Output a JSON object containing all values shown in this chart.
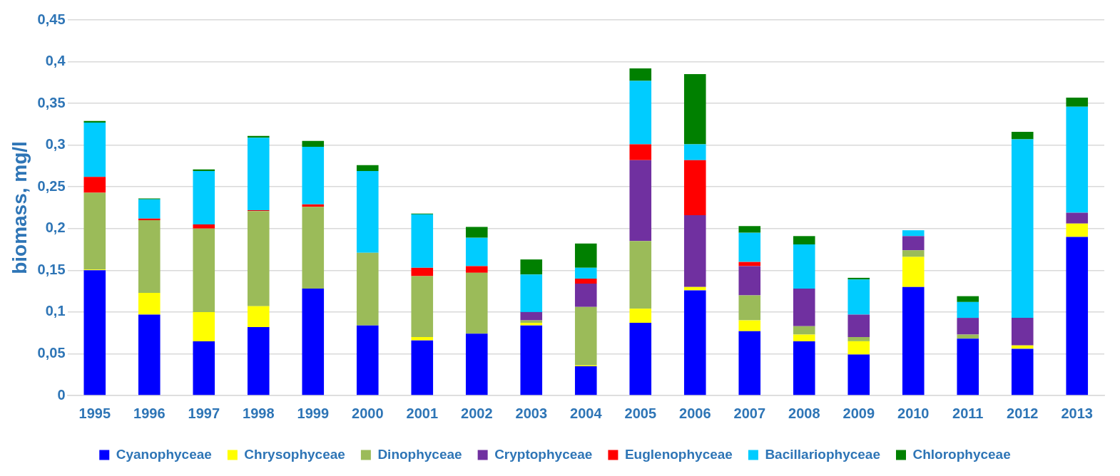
{
  "chart_data": {
    "type": "bar",
    "stacked": true,
    "ylabel": "biomass, mg/l",
    "categories": [
      "1995",
      "1996",
      "1997",
      "1998",
      "1999",
      "2000",
      "2001",
      "2002",
      "2003",
      "2004",
      "2005",
      "2006",
      "2007",
      "2008",
      "2009",
      "2010",
      "2011",
      "2012",
      "2013"
    ],
    "series": [
      {
        "name": "Cyanophyceae",
        "color": "#0000ff",
        "values": [
          0.15,
          0.097,
          0.065,
          0.082,
          0.128,
          0.084,
          0.066,
          0.074,
          0.084,
          0.035,
          0.087,
          0.126,
          0.077,
          0.065,
          0.049,
          0.13,
          0.068,
          0.056,
          0.19
        ]
      },
      {
        "name": "Chrysophyceae",
        "color": "#ffff00",
        "values": [
          0.001,
          0.026,
          0.035,
          0.025,
          0,
          0,
          0.004,
          0,
          0.003,
          0.001,
          0.017,
          0.004,
          0.013,
          0.008,
          0.016,
          0.036,
          0,
          0.004,
          0.016
        ]
      },
      {
        "name": "Dinophyceae",
        "color": "#9bbb59",
        "values": [
          0.092,
          0.087,
          0.1,
          0.114,
          0.098,
          0.087,
          0.073,
          0.073,
          0.003,
          0.07,
          0.081,
          0,
          0.03,
          0.01,
          0.005,
          0.008,
          0.005,
          0,
          0
        ]
      },
      {
        "name": "Cryptophyceae",
        "color": "#7030a0",
        "values": [
          0,
          0,
          0,
          0,
          0,
          0,
          0,
          0,
          0.01,
          0.028,
          0.097,
          0.086,
          0.035,
          0.045,
          0.027,
          0.017,
          0.02,
          0.033,
          0.013
        ]
      },
      {
        "name": "Euglenophyceae",
        "color": "#ff0000",
        "values": [
          0.019,
          0.002,
          0.005,
          0.001,
          0.003,
          0,
          0.01,
          0.008,
          0,
          0.006,
          0.019,
          0.066,
          0.005,
          0,
          0,
          0,
          0,
          0,
          0
        ]
      },
      {
        "name": "Bacillariophyceae",
        "color": "#00ccff",
        "values": [
          0.065,
          0.023,
          0.064,
          0.087,
          0.069,
          0.098,
          0.064,
          0.034,
          0.045,
          0.013,
          0.076,
          0.019,
          0.035,
          0.053,
          0.042,
          0.007,
          0.019,
          0.214,
          0.127
        ]
      },
      {
        "name": "Chlorophyceae",
        "color": "#008000",
        "values": [
          0.002,
          0.001,
          0.002,
          0.002,
          0.007,
          0.007,
          0.001,
          0.013,
          0.018,
          0.029,
          0.015,
          0.084,
          0.008,
          0.01,
          0.002,
          0,
          0.007,
          0.009,
          0.011
        ]
      }
    ],
    "ylim": [
      0,
      0.45
    ],
    "yticks": [
      0,
      {
        "value": 0.05,
        "label": "0,05"
      },
      {
        "value": 0.1,
        "label": "0,1"
      },
      {
        "value": 0.15,
        "label": "0,15"
      },
      {
        "value": 0.2,
        "label": "0,2"
      },
      {
        "value": 0.25,
        "label": "0,25"
      },
      {
        "value": 0.3,
        "label": "0,3"
      },
      {
        "value": 0.35,
        "label": "0,35"
      },
      {
        "value": 0.4,
        "label": "0,4"
      },
      {
        "value": 0.45,
        "label": "0,45"
      }
    ],
    "grid": "y",
    "legend": "bottom"
  }
}
